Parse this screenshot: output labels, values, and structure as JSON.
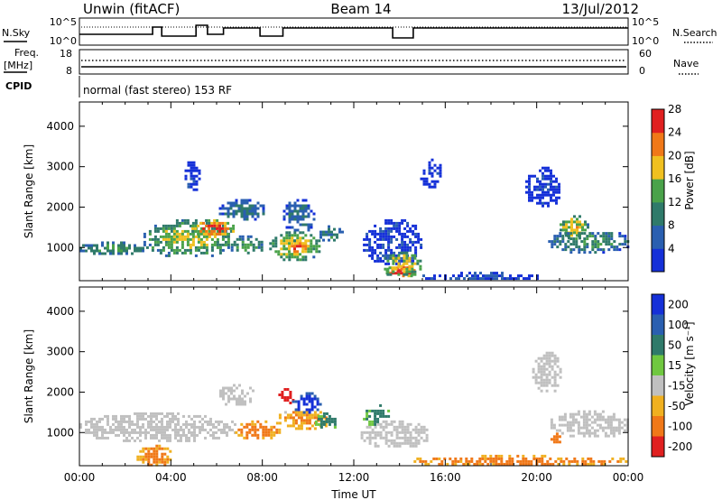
{
  "header": {
    "station": "Unwin (fitACF)",
    "beam": "Beam 14",
    "date": "13/Jul/2012"
  },
  "status_rows": {
    "nsky_label": "N.Sky",
    "nsky_ticks": [
      "10^5",
      "10^0"
    ],
    "nsearch_label": "N.Search",
    "nsearch_ticks": [
      "10^5",
      "10^0"
    ],
    "freq_label": "Freq.",
    "freq_unit": "[MHz]",
    "freq_ticks": [
      "18",
      "8"
    ],
    "nave_label": "Nave",
    "nave_ticks": [
      "60",
      "0"
    ],
    "cpid_label": "CPID",
    "cpid_text": "normal (fast stereo) 153 RF"
  },
  "chart_data": [
    {
      "type": "heatmap",
      "name": "power",
      "ylabel": "Slant Range [km]",
      "y_ticks": [
        "1000",
        "2000",
        "3000",
        "4000"
      ],
      "ylim": [
        180,
        4600
      ],
      "xlim": [
        0,
        24
      ],
      "colorbar_label": "Power [dB]",
      "colorbar_ticks": [
        "4",
        "8",
        "12",
        "16",
        "20",
        "24",
        "28"
      ],
      "colorbar_colors": [
        "#1530d8",
        "#2a5fb0",
        "#2f7a6a",
        "#4aa24a",
        "#f0c020",
        "#f07818",
        "#e02020"
      ],
      "blobs": [
        {
          "t0": 0.0,
          "t1": 2.8,
          "r0": 850,
          "r1": 1150,
          "v": 13
        },
        {
          "t0": 2.8,
          "t1": 6.7,
          "r0": 800,
          "r1": 1700,
          "v": 16
        },
        {
          "t0": 4.9,
          "t1": 6.7,
          "r0": 1300,
          "r1": 1700,
          "v": 24
        },
        {
          "t0": 6.1,
          "t1": 8.1,
          "r0": 1700,
          "r1": 2200,
          "v": 10
        },
        {
          "t0": 6.5,
          "t1": 8.0,
          "r0": 850,
          "r1": 1300,
          "v": 13
        },
        {
          "t0": 8.3,
          "t1": 10.5,
          "r0": 700,
          "r1": 1400,
          "v": 18
        },
        {
          "t0": 9.0,
          "t1": 10.0,
          "r0": 850,
          "r1": 1200,
          "v": 24
        },
        {
          "t0": 8.9,
          "t1": 10.3,
          "r0": 1400,
          "r1": 2200,
          "v": 9
        },
        {
          "t0": 10.5,
          "t1": 11.5,
          "r0": 1150,
          "r1": 1550,
          "v": 11
        },
        {
          "t0": 12.4,
          "t1": 15.0,
          "r0": 600,
          "r1": 1700,
          "v": 5
        },
        {
          "t0": 13.4,
          "t1": 14.7,
          "r0": 300,
          "r1": 600,
          "v": 27
        },
        {
          "t0": 13.2,
          "t1": 14.9,
          "r0": 300,
          "r1": 900,
          "v": 18
        },
        {
          "t0": 15.0,
          "t1": 20.0,
          "r0": 200,
          "r1": 400,
          "v": 6
        },
        {
          "t0": 21.0,
          "t1": 22.2,
          "r0": 1250,
          "r1": 1800,
          "v": 18
        },
        {
          "t0": 20.5,
          "t1": 24.0,
          "r0": 900,
          "r1": 1450,
          "v": 12
        },
        {
          "t0": 4.6,
          "t1": 5.2,
          "r0": 2400,
          "r1": 3200,
          "v": 4
        },
        {
          "t0": 19.5,
          "t1": 21.0,
          "r0": 2000,
          "r1": 3000,
          "v": 4
        },
        {
          "t0": 14.9,
          "t1": 15.8,
          "r0": 2500,
          "r1": 3200,
          "v": 4
        }
      ]
    },
    {
      "type": "heatmap",
      "name": "velocity",
      "ylabel": "Slant Range [km]",
      "xlabel": "Time UT",
      "y_ticks": [
        "1000",
        "2000",
        "3000",
        "4000"
      ],
      "x_ticks": [
        "00:00",
        "04:00",
        "08:00",
        "12:00",
        "16:00",
        "20:00",
        "00:00"
      ],
      "ylim": [
        180,
        4600
      ],
      "xlim": [
        0,
        24
      ],
      "colorbar_label": "Velocity [m s⁻¹]",
      "colorbar_ticks": [
        "200",
        "100",
        "50",
        "15",
        "-15",
        "-50",
        "-100",
        "-200"
      ],
      "colorbar_colors": [
        "#1530d8",
        "#2a5fb0",
        "#2f7a6a",
        "#70c840",
        "#c0c0c0",
        "#f0b020",
        "#f07818",
        "#e02020"
      ],
      "blobs": [
        {
          "t0": 0.0,
          "t1": 6.8,
          "r0": 800,
          "r1": 1500,
          "v": 0
        },
        {
          "t0": 6.0,
          "t1": 7.6,
          "r0": 1700,
          "r1": 2200,
          "v": 0
        },
        {
          "t0": 6.8,
          "t1": 8.7,
          "r0": 850,
          "r1": 1300,
          "v": -40
        },
        {
          "t0": 8.6,
          "t1": 10.9,
          "r0": 1100,
          "r1": 1600,
          "v": -30
        },
        {
          "t0": 8.7,
          "t1": 9.3,
          "r0": 1700,
          "r1": 2100,
          "v": -180
        },
        {
          "t0": 9.3,
          "t1": 10.5,
          "r0": 1500,
          "r1": 2000,
          "v": 180
        },
        {
          "t0": 10.3,
          "t1": 11.3,
          "r0": 1100,
          "r1": 1500,
          "v": 40
        },
        {
          "t0": 12.3,
          "t1": 15.2,
          "r0": 650,
          "r1": 1300,
          "v": 0
        },
        {
          "t0": 12.4,
          "t1": 13.5,
          "r0": 1200,
          "r1": 1700,
          "v": 40
        },
        {
          "t0": 14.5,
          "t1": 24.0,
          "r0": 200,
          "r1": 450,
          "v": -40
        },
        {
          "t0": 20.6,
          "t1": 24.0,
          "r0": 900,
          "r1": 1550,
          "v": 0
        },
        {
          "t0": 20.6,
          "t1": 21.0,
          "r0": 750,
          "r1": 1000,
          "v": -60
        },
        {
          "t0": 2.5,
          "t1": 4.0,
          "r0": 200,
          "r1": 700,
          "v": -40
        },
        {
          "t0": 19.8,
          "t1": 21.0,
          "r0": 2000,
          "r1": 3000,
          "v": 0
        }
      ]
    }
  ]
}
